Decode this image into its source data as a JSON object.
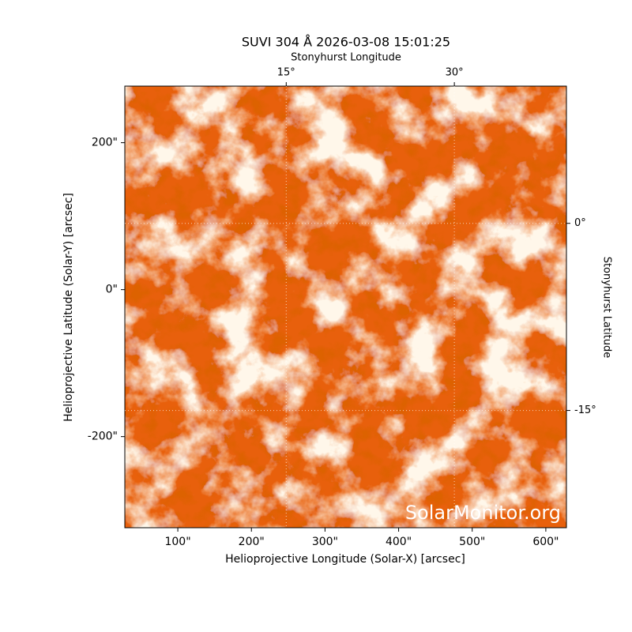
{
  "chart_data": {
    "type": "image",
    "title": "SUVI 304 Å 2026-03-08 15:01:25",
    "xlabel": "Helioprojective Longitude (Solar-X) [arcsec]",
    "ylabel": "Helioprojective Latitude (Solar-Y) [arcsec]",
    "x2label": "Stonyhurst Longitude",
    "y2label": "Stonyhurst Latitude",
    "annotation": "SolarMonitor.org",
    "xlim": [
      28,
      628
    ],
    "xticks": [
      {
        "value": 100,
        "label": "100\""
      },
      {
        "value": 200,
        "label": "200\""
      },
      {
        "value": 300,
        "label": "300\""
      },
      {
        "value": 400,
        "label": "400\""
      },
      {
        "value": 500,
        "label": "500\""
      },
      {
        "value": 600,
        "label": "600\""
      }
    ],
    "ylim": [
      -324,
      277
    ],
    "yticks": [
      {
        "value": -200,
        "label": "-200\""
      },
      {
        "value": 0,
        "label": "0\""
      },
      {
        "value": 200,
        "label": "200\""
      }
    ],
    "x2lim": [
      0.6,
      40
    ],
    "x2ticks": [
      {
        "value": 15,
        "label": "15°"
      },
      {
        "value": 30,
        "label": "30°"
      }
    ],
    "y2lim": [
      -24.4,
      11
    ],
    "y2ticks": [
      {
        "value": -15,
        "label": "-15°"
      },
      {
        "value": 0,
        "label": "0°"
      }
    ],
    "grid": true
  }
}
